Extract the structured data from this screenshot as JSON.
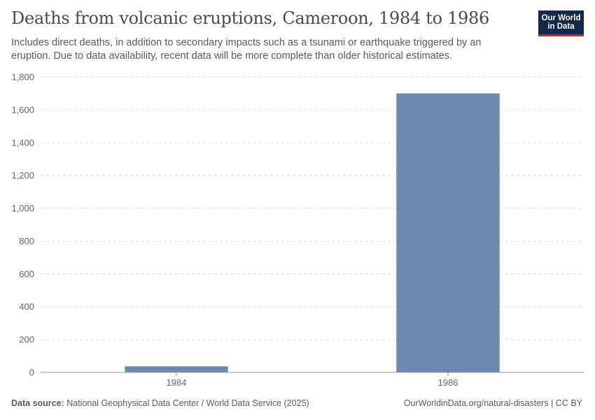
{
  "header": {
    "title": "Deaths from volcanic eruptions, Cameroon, 1984 to 1986",
    "subtitle": "Includes direct deaths, in addition to secondary impacts such as a tsunami or earthquake triggered by an eruption. Due to data availability, recent data will be more complete than older historical estimates.",
    "logo_line1": "Our World",
    "logo_line2": "in Data"
  },
  "footer": {
    "source_label": "Data source:",
    "source_text": "National Geophysical Data Center / World Data Service (2025)",
    "link_text": "OurWorldinData.org/natural-disasters | CC BY"
  },
  "colors": {
    "bar": "#6e89b0",
    "grid": "#dddddd",
    "axis": "#999999",
    "logo_bg": "#12284b",
    "logo_accent": "#ce261e"
  },
  "chart_data": {
    "type": "bar",
    "categories": [
      "1984",
      "1986"
    ],
    "values": [
      37,
      1700
    ],
    "ylim": [
      0,
      1800
    ],
    "yticks": [
      0,
      200,
      400,
      600,
      800,
      1000,
      1200,
      1400,
      1600,
      1800
    ],
    "ytick_labels": [
      "0",
      "200",
      "400",
      "600",
      "800",
      "1,000",
      "1,200",
      "1,400",
      "1,600",
      "1,800"
    ],
    "grid": true
  }
}
